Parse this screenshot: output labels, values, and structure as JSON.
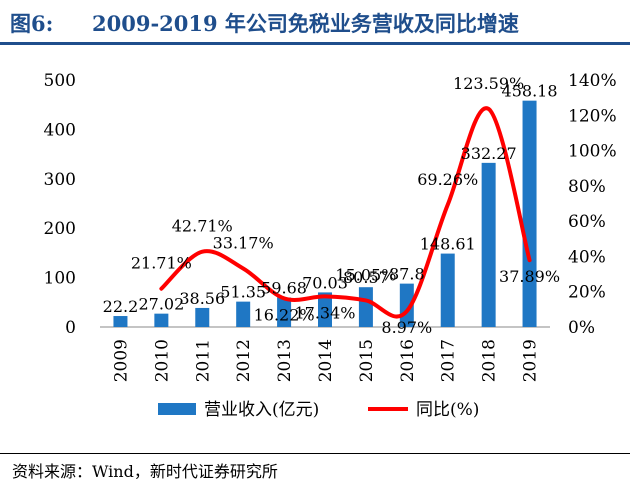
{
  "figure": {
    "label": "图6:",
    "title": "2009-2019 年公司免税业务营收及同比增速"
  },
  "source": "资料来源：Wind，新时代证券研究所",
  "chart_data": {
    "type": "bar+line",
    "categories": [
      "2009",
      "2010",
      "2011",
      "2012",
      "2013",
      "2014",
      "2015",
      "2016",
      "2017",
      "2018",
      "2019"
    ],
    "series": [
      {
        "name": "营业收入(亿元)",
        "type": "bar",
        "axis": "left",
        "color": "#1f77c4",
        "values": [
          22.2,
          27.02,
          38.56,
          51.35,
          59.68,
          70.03,
          80.57,
          87.8,
          148.61,
          332.27,
          458.18
        ],
        "labels": [
          "22.2",
          "27.02",
          "38.56",
          "51.35",
          "59.68",
          "70.03",
          "80.57",
          "87.8",
          "148.61",
          "332.27",
          "458.18"
        ]
      },
      {
        "name": "同比(%)",
        "type": "line",
        "axis": "right",
        "color": "#ff0000",
        "smooth": true,
        "values": [
          null,
          21.71,
          42.71,
          33.17,
          16.22,
          17.34,
          15.05,
          8.97,
          69.26,
          123.59,
          37.89
        ],
        "labels": [
          "",
          "21.71%",
          "42.71%",
          "33.17%",
          "16.22%",
          "17.34%",
          "15.05%",
          "8.97%",
          "69.26%",
          "123.59%",
          "37.89%"
        ]
      }
    ],
    "y_left": {
      "min": 0,
      "max": 500,
      "ticks": [
        "0",
        "100",
        "200",
        "300",
        "400",
        "500"
      ]
    },
    "y_right": {
      "min": 0,
      "max": 140,
      "ticks": [
        "0%",
        "20%",
        "40%",
        "60%",
        "80%",
        "100%",
        "120%",
        "140%"
      ]
    },
    "grid": false,
    "legend": "bottom"
  }
}
